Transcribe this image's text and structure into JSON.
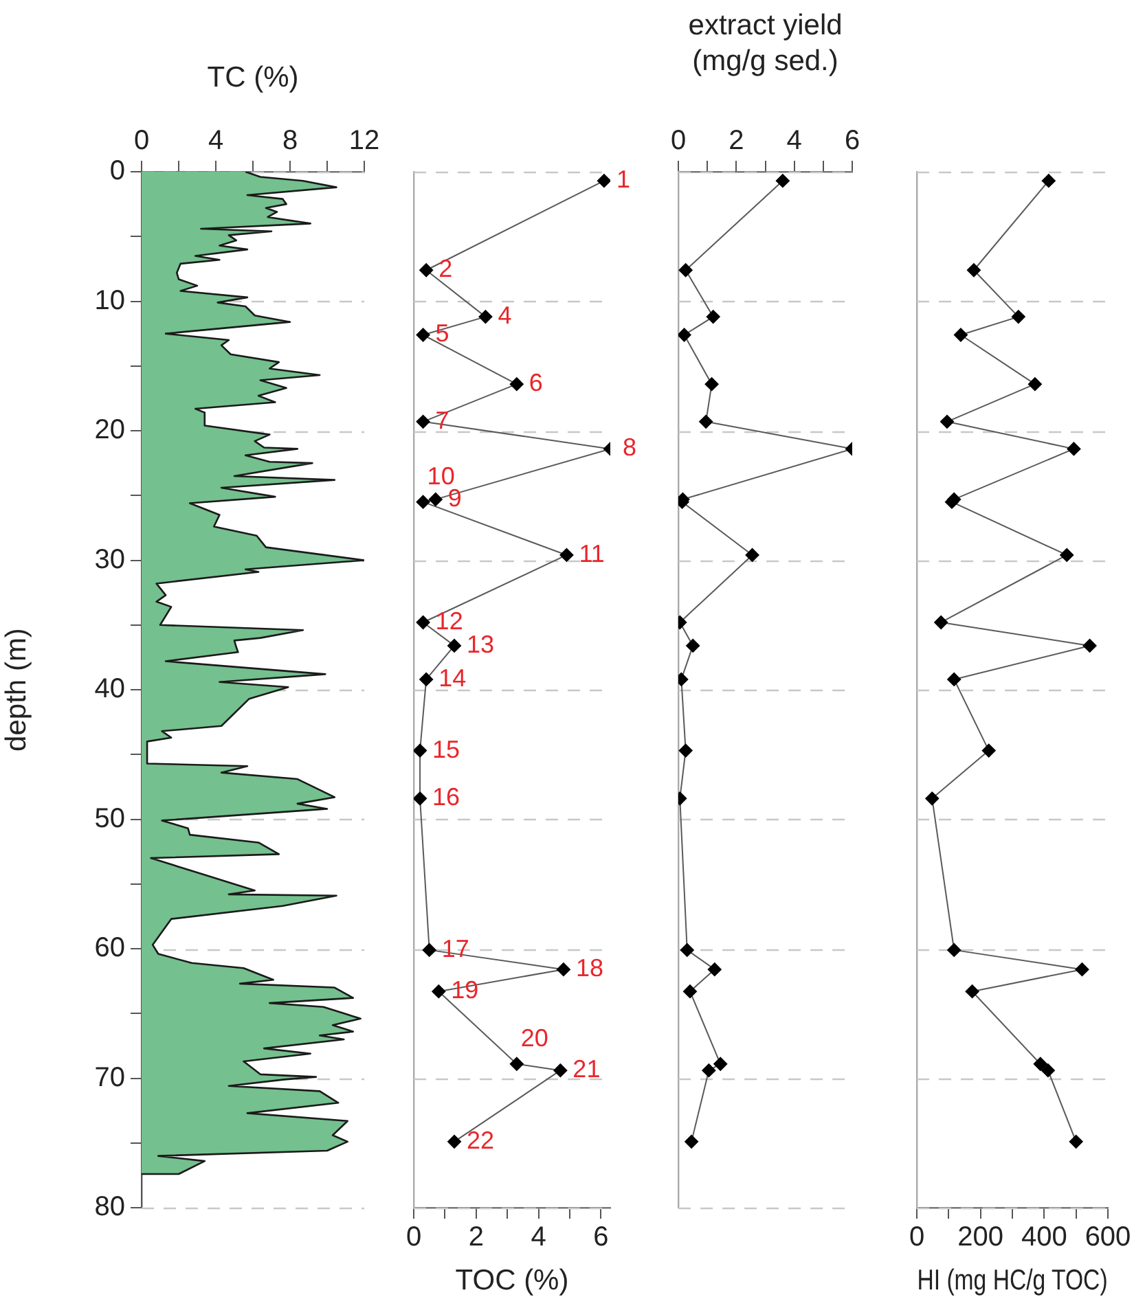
{
  "chart_data": [
    {
      "type": "area",
      "xlabel": "TC (%)",
      "ylabel": "depth (m)",
      "xlim": [
        0,
        12
      ],
      "xticks": [
        0,
        {
          "value": 2,
          "label": null
        },
        4,
        {
          "value": 6,
          "label": null
        },
        8,
        {
          "value": 10,
          "label": null
        },
        12
      ],
      "ylim": [
        80,
        0
      ],
      "yticks": [
        0,
        {
          "value": 5,
          "label": null
        },
        10,
        {
          "value": 15,
          "label": null
        },
        20,
        {
          "value": 25,
          "label": null
        },
        30,
        {
          "value": 35,
          "label": null
        },
        40,
        {
          "value": 45,
          "label": null
        },
        50,
        {
          "value": 55,
          "label": null
        },
        60,
        {
          "value": 65,
          "label": null
        },
        70,
        {
          "value": 75,
          "label": null
        },
        80
      ],
      "grid": "y",
      "legend": false,
      "series": [
        {
          "color": "#74c08e",
          "x": [
            5.6,
            6.4,
            8.7,
            10.5,
            5.7,
            7.6,
            7.8,
            6.7,
            7.3,
            6.8,
            9.1,
            3.2,
            7.0,
            4.7,
            5.1,
            4.2,
            5.7,
            2.9,
            4.2,
            2.1,
            1.9,
            2.0,
            3.0,
            2.1,
            5.7,
            4.1,
            5.6,
            6.1,
            8.0,
            1.3,
            4.7,
            4.3,
            4.8,
            7.4,
            6.9,
            9.6,
            6.4,
            7.8,
            6.3,
            7.2,
            2.9,
            3.4,
            3.4,
            6.9,
            6.1,
            6.6,
            8.4,
            5.6,
            6.9,
            9.2,
            5.0,
            10.4,
            4.3,
            7.2,
            2.6,
            4.2,
            3.9,
            6.2,
            6.7,
            12.0,
            5.6,
            6.3,
            0.8,
            1.3,
            0.8,
            1.6,
            1.0,
            8.7,
            6.4,
            5.0,
            5.1,
            5.2,
            1.3,
            9.9,
            4.2,
            7.9,
            5.8,
            4.3,
            1.1,
            1.6,
            0.3,
            0.3,
            5.7,
            4.3,
            8.4,
            10.4,
            8.4,
            10.0,
            1.1,
            2.5,
            2.6,
            6.3,
            7.4,
            0.5,
            6.1,
            4.7,
            10.5,
            7.6,
            1.6,
            0.6,
            0.9,
            2.7,
            5.5,
            7.1,
            5.3,
            10.4,
            11.4,
            6.9,
            9.8,
            11.8,
            10.3,
            11.4,
            9.6,
            10.9,
            6.6,
            9.1,
            5.5,
            6.4,
            9.4,
            7.7,
            4.7,
            9.6,
            10.6,
            5.7,
            11.1,
            10.3,
            11.1,
            10.0,
            0.9,
            3.4,
            2.0,
            0
          ],
          "values": [
            0,
            0.4,
            0.7,
            1.2,
            1.8,
            2.1,
            2.5,
            2.8,
            3.1,
            3.5,
            4.0,
            4.4,
            4.6,
            4.9,
            5.3,
            5.7,
            6.0,
            6.5,
            6.8,
            7.1,
            7.8,
            8.3,
            8.8,
            9.2,
            9.7,
            10.1,
            10.4,
            11.1,
            11.6,
            12.5,
            13.0,
            13.4,
            14.1,
            14.7,
            15.2,
            15.7,
            16.1,
            16.7,
            17.3,
            17.8,
            18.3,
            18.6,
            19.6,
            20.3,
            20.8,
            21.3,
            21.4,
            21.9,
            22.4,
            22.5,
            23.5,
            23.8,
            24.4,
            25.1,
            25.6,
            26.5,
            27.4,
            28.1,
            29.0,
            30.0,
            30.7,
            30.9,
            31.8,
            32.7,
            33.2,
            33.6,
            35.0,
            35.4,
            36.0,
            36.2,
            36.7,
            37.1,
            37.8,
            38.8,
            39.4,
            39.8,
            40.7,
            42.8,
            43.2,
            43.7,
            44.0,
            45.7,
            45.9,
            46.4,
            46.9,
            48.3,
            48.8,
            49.2,
            50.1,
            50.7,
            51.2,
            51.8,
            52.7,
            53.0,
            55.5,
            55.8,
            55.9,
            56.7,
            57.7,
            59.7,
            60.4,
            61.1,
            61.5,
            62.4,
            62.7,
            63.0,
            63.8,
            64.2,
            64.5,
            65.4,
            65.9,
            66.4,
            66.7,
            67.0,
            67.7,
            68.1,
            68.7,
            69.7,
            69.9,
            70.1,
            70.6,
            71.0,
            71.9,
            72.7,
            73.3,
            74.4,
            74.9,
            75.6,
            76.0,
            76.4,
            77.4,
            77.4
          ]
        }
      ]
    },
    {
      "type": "line",
      "xlabel": "TOC (%)",
      "xlim": [
        0,
        6.3
      ],
      "xticks": [
        0,
        {
          "value": 1,
          "label": null
        },
        2,
        {
          "value": 3,
          "label": null
        },
        4,
        {
          "value": 5,
          "label": null
        },
        6
      ],
      "ylim": [
        80,
        0
      ],
      "yticks": [
        {
          "value": 0,
          "label": null
        },
        {
          "value": 10,
          "label": null
        },
        {
          "value": 20,
          "label": null
        },
        {
          "value": 30,
          "label": null
        },
        {
          "value": 40,
          "label": null
        },
        {
          "value": 50,
          "label": null
        },
        {
          "value": 60,
          "label": null
        },
        {
          "value": 70,
          "label": null
        },
        {
          "value": 80,
          "label": null
        }
      ],
      "tick_labels": "x",
      "grid": "y",
      "legend": false,
      "marker": "diamond",
      "line_style": "solid",
      "series": [
        {
          "color": "#000000",
          "x": [
            6.1,
            0.4,
            2.3,
            0.3,
            3.3,
            0.3,
            6.3,
            0.7,
            0.3,
            4.9,
            0.3,
            1.3,
            0.4,
            0.2,
            0.2,
            0.5,
            4.8,
            0.8,
            3.3,
            4.7,
            1.3
          ],
          "values": [
            0.7,
            7.6,
            11.2,
            12.6,
            16.4,
            19.3,
            21.4,
            25.3,
            25.5,
            29.6,
            34.8,
            36.6,
            39.2,
            44.7,
            48.4,
            60.1,
            61.6,
            63.3,
            68.9,
            69.4,
            74.9
          ]
        }
      ],
      "annotations": [
        {
          "text": "1",
          "x": 6.1,
          "y": 0.7
        },
        {
          "text": "2",
          "x": 0.4,
          "y": 7.6
        },
        {
          "text": "4",
          "x": 2.3,
          "y": 11.2
        },
        {
          "text": "5",
          "x": 0.3,
          "y": 12.6
        },
        {
          "text": "6",
          "x": 3.3,
          "y": 16.4
        },
        {
          "text": "7",
          "x": 0.3,
          "y": 19.3
        },
        {
          "text": "8",
          "x": 6.3,
          "y": 21.4
        },
        {
          "text": "9",
          "x": 0.7,
          "y": 25.3
        },
        {
          "text": "10",
          "x": 0.3,
          "y": 25.5
        },
        {
          "text": "11",
          "x": 4.9,
          "y": 29.6
        },
        {
          "text": "12",
          "x": 0.3,
          "y": 34.8
        },
        {
          "text": "13",
          "x": 1.3,
          "y": 36.6
        },
        {
          "text": "14",
          "x": 0.4,
          "y": 39.2
        },
        {
          "text": "15",
          "x": 0.2,
          "y": 44.7
        },
        {
          "text": "16",
          "x": 0.2,
          "y": 48.4
        },
        {
          "text": "17",
          "x": 0.5,
          "y": 60.1
        },
        {
          "text": "18",
          "x": 4.8,
          "y": 61.6
        },
        {
          "text": "19",
          "x": 0.8,
          "y": 63.3
        },
        {
          "text": "20",
          "x": 3.3,
          "y": 68.9
        },
        {
          "text": "21",
          "x": 4.7,
          "y": 69.4
        },
        {
          "text": "22",
          "x": 1.3,
          "y": 74.9
        }
      ]
    },
    {
      "type": "line",
      "xlabel": "extract yield\n(mg/g sed.)",
      "xlim": [
        0,
        6
      ],
      "xticks": [
        0,
        {
          "value": 1,
          "label": null
        },
        2,
        {
          "value": 3,
          "label": null
        },
        4,
        {
          "value": 5,
          "label": null
        },
        6
      ],
      "ylim": [
        80,
        0
      ],
      "yticks": [
        {
          "value": 0,
          "label": null
        },
        {
          "value": 10,
          "label": null
        },
        {
          "value": 20,
          "label": null
        },
        {
          "value": 30,
          "label": null
        },
        {
          "value": 40,
          "label": null
        },
        {
          "value": 50,
          "label": null
        },
        {
          "value": 60,
          "label": null
        },
        {
          "value": 70,
          "label": null
        },
        {
          "value": 80,
          "label": null
        }
      ],
      "tick_labels": "x",
      "grid": "y",
      "legend": false,
      "marker": "diamond",
      "line_style": "solid",
      "series": [
        {
          "color": "#000000",
          "x": [
            3.6,
            0.25,
            1.2,
            0.2,
            1.15,
            0.95,
            6.0,
            0.15,
            0.13,
            2.55,
            0.05,
            0.5,
            0.1,
            0.25,
            0.05,
            0.3,
            1.25,
            0.4,
            1.45,
            1.05,
            0.45
          ],
          "values": [
            0.7,
            7.6,
            11.2,
            12.6,
            16.4,
            19.3,
            21.4,
            25.3,
            25.5,
            29.6,
            34.8,
            36.6,
            39.2,
            44.7,
            48.4,
            60.1,
            61.6,
            63.3,
            68.9,
            69.4,
            74.9
          ]
        }
      ]
    },
    {
      "type": "line",
      "xlabel": "HI (mg HC/g TOC)",
      "xlim": [
        0,
        600
      ],
      "xticks": [
        0,
        {
          "value": 100,
          "label": null
        },
        200,
        {
          "value": 300,
          "label": null
        },
        400,
        {
          "value": 500,
          "label": null
        },
        600
      ],
      "ylim": [
        80,
        0
      ],
      "yticks": [
        {
          "value": 0,
          "label": null
        },
        {
          "value": 10,
          "label": null
        },
        {
          "value": 20,
          "label": null
        },
        {
          "value": 30,
          "label": null
        },
        {
          "value": 40,
          "label": null
        },
        {
          "value": 50,
          "label": null
        },
        {
          "value": 60,
          "label": null
        },
        {
          "value": 70,
          "label": null
        },
        {
          "value": 80,
          "label": null
        }
      ],
      "tick_labels": "x",
      "grid": "y",
      "legend": false,
      "marker": "diamond",
      "line_style": "solid",
      "series": [
        {
          "color": "#000000",
          "x": [
            414,
            179,
            319,
            138,
            371,
            95,
            493,
            117,
            110,
            471,
            76,
            543,
            117,
            226,
            48,
            117,
            519,
            174,
            388,
            412,
            500
          ],
          "values": [
            0.7,
            7.6,
            11.2,
            12.6,
            16.4,
            19.3,
            21.4,
            25.3,
            25.5,
            29.6,
            34.8,
            36.6,
            39.2,
            44.7,
            48.4,
            60.1,
            61.6,
            63.3,
            68.9,
            69.4,
            74.9
          ]
        }
      ]
    }
  ]
}
